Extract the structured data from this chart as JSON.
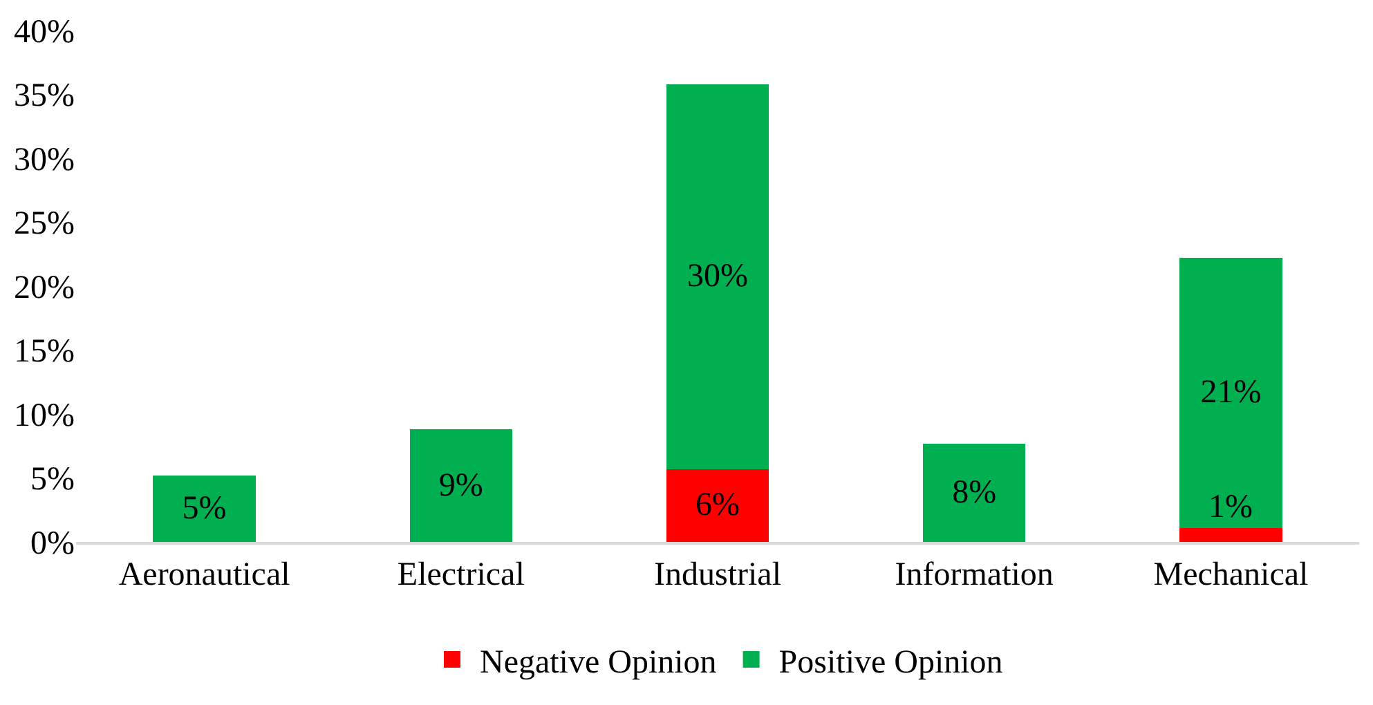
{
  "chart_data": {
    "type": "bar",
    "stacked": true,
    "categories": [
      "Aeronautical",
      "Electrical",
      "Industrial",
      "Information",
      "Mechanical"
    ],
    "series": [
      {
        "name": "Negative Opinion",
        "color": "#ff0000",
        "values": [
          null,
          null,
          5.7,
          null,
          1.1
        ],
        "value_labels": [
          null,
          null,
          "6%",
          null,
          "1%"
        ]
      },
      {
        "name": "Positive Opinion",
        "color": "#00b050",
        "values": [
          5.2,
          8.8,
          30.1,
          7.7,
          21.1
        ],
        "value_labels": [
          "5%",
          "9%",
          "30%",
          "8%",
          "21%"
        ]
      }
    ],
    "ylim": [
      0,
      40
    ],
    "yticks": [
      {
        "value": 0,
        "label": "0%"
      },
      {
        "value": 5,
        "label": "5%"
      },
      {
        "value": 10,
        "label": "10%"
      },
      {
        "value": 15,
        "label": "15%"
      },
      {
        "value": 20,
        "label": "20%"
      },
      {
        "value": 25,
        "label": "25%"
      },
      {
        "value": 30,
        "label": "30%"
      },
      {
        "value": 35,
        "label": "35%"
      },
      {
        "value": 40,
        "label": "40%"
      }
    ],
    "grid": false,
    "legend": "bottom"
  }
}
